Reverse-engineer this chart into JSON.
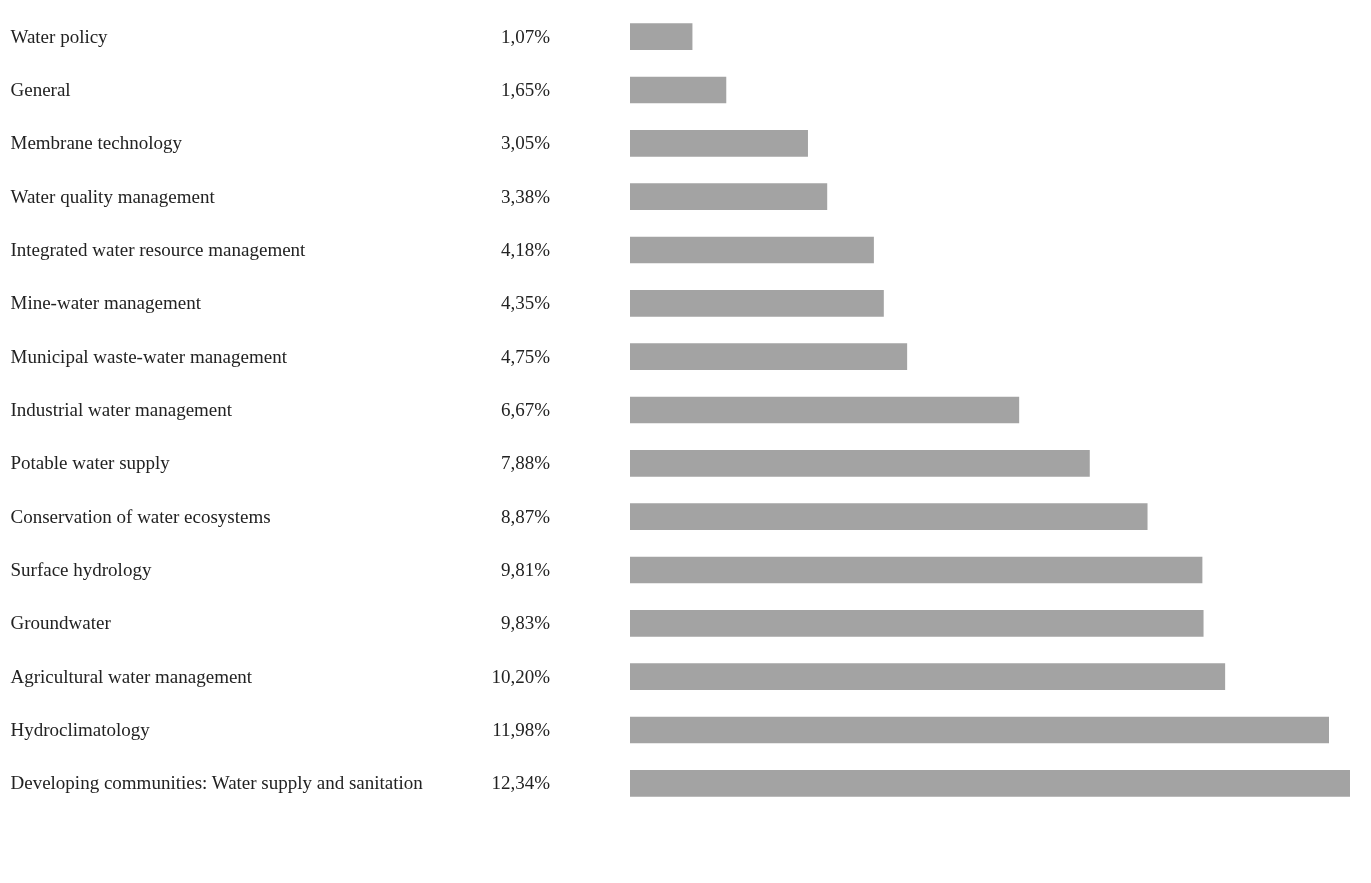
{
  "chart_data": {
    "type": "bar",
    "orientation": "horizontal",
    "categories": [
      "Water policy",
      "General",
      "Membrane technology",
      "Water quality management",
      "Integrated water resource management",
      "Mine-water management",
      "Municipal waste-water management",
      "Industrial water management",
      "Potable water supply",
      "Conservation of water ecosystems",
      "Surface hydrology",
      "Groundwater",
      "Agricultural water management",
      "Hydroclimatology",
      "Developing communities: Water supply and sanitation"
    ],
    "values": [
      1.07,
      1.65,
      3.05,
      3.38,
      4.18,
      4.35,
      4.75,
      6.67,
      7.88,
      8.87,
      9.81,
      9.83,
      10.2,
      11.98,
      12.34
    ],
    "value_labels": [
      "1,07%",
      "1,65%",
      "3,05%",
      "3,38%",
      "4,18%",
      "4,35%",
      "4,75%",
      "6,67%",
      "7,88%",
      "8,87%",
      "9,81%",
      "9,83%",
      "10,20%",
      "11,98%",
      "12,34%"
    ],
    "color": "#a3a3a3"
  }
}
